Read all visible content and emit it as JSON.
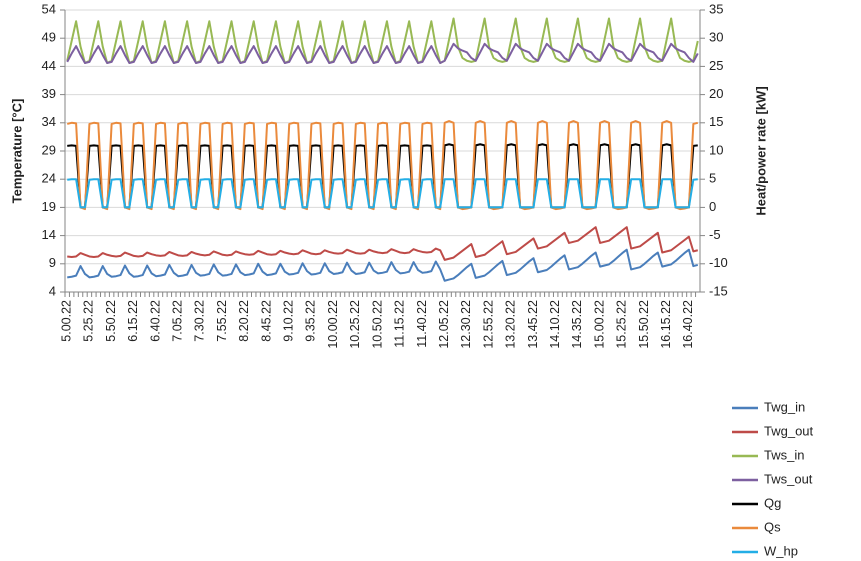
{
  "chart_data": {
    "type": "line",
    "ylabel": "Temperature [°C]",
    "y2label": "Heat/power rate [kW]",
    "ylim": [
      4,
      54
    ],
    "yticks": [
      4,
      9,
      14,
      19,
      24,
      29,
      34,
      39,
      44,
      49,
      54
    ],
    "y2lim": [
      -15,
      35
    ],
    "y2ticks": [
      -15,
      -10,
      -5,
      0,
      5,
      10,
      15,
      20,
      25,
      30,
      35
    ],
    "grid": true,
    "legend": "right",
    "categories": [
      "5.00.22",
      null,
      null,
      null,
      null,
      "5.25.22",
      null,
      null,
      null,
      null,
      "5.50.22",
      null,
      null,
      null,
      null,
      "6.15.22",
      null,
      null,
      null,
      null,
      "6.40.22",
      null,
      null,
      null,
      null,
      "7.05.22",
      null,
      null,
      null,
      null,
      "7.30.22",
      null,
      null,
      null,
      null,
      "7.55.22",
      null,
      null,
      null,
      null,
      "8.20.22",
      null,
      null,
      null,
      null,
      "8.45.22",
      null,
      null,
      null,
      null,
      "9.10.22",
      null,
      null,
      null,
      null,
      "9.35.22",
      null,
      null,
      null,
      null,
      "10.00.22",
      null,
      null,
      null,
      null,
      "10.25.22",
      null,
      null,
      null,
      null,
      "10.50.22",
      null,
      null,
      null,
      null,
      "11.15.22",
      null,
      null,
      null,
      null,
      "11.40.22",
      null,
      null,
      null,
      null,
      "12.05.22",
      null,
      null,
      null,
      null,
      "12.30.22",
      null,
      null,
      null,
      null,
      "12.55.22",
      null,
      null,
      null,
      null,
      "13.20.22",
      null,
      null,
      null,
      null,
      "13.45.22",
      null,
      null,
      null,
      null,
      "14.10.22",
      null,
      null,
      null,
      null,
      "14.35.22",
      null,
      null,
      null,
      null,
      "15.00.22",
      null,
      null,
      null,
      null,
      "15.25.22",
      null,
      null,
      null,
      null,
      "15.50.22",
      null,
      null,
      null,
      null,
      "16.15.22",
      null,
      null,
      null,
      null,
      "16.40.22",
      null,
      null
    ],
    "series": [
      {
        "name": "Twg_in",
        "color": "#4a7ebb",
        "values": [
          6.6,
          6.7,
          6.9,
          8.6,
          7.2,
          6.6,
          6.7,
          6.9,
          8.6,
          7.2,
          6.7,
          6.8,
          7,
          8.7,
          7.3,
          6.7,
          6.8,
          7,
          8.7,
          7.3,
          6.8,
          6.9,
          7.1,
          8.8,
          7.4,
          6.8,
          6.9,
          7.1,
          8.8,
          7.4,
          6.9,
          7,
          7.2,
          8.9,
          7.5,
          6.9,
          7,
          7.2,
          8.9,
          7.5,
          7,
          7.1,
          7.3,
          9,
          7.6,
          7,
          7.1,
          7.3,
          9,
          7.6,
          7.1,
          7.2,
          7.4,
          9.1,
          7.7,
          7.1,
          7.2,
          7.4,
          9.1,
          7.7,
          7.2,
          7.3,
          7.5,
          9.2,
          7.8,
          7.2,
          7.3,
          7.5,
          9.2,
          7.8,
          7.3,
          7.4,
          7.6,
          9.3,
          7.9,
          7.3,
          7.4,
          7.6,
          9.3,
          7.9,
          7.4,
          7.5,
          7.7,
          9.4,
          8,
          6,
          6.2,
          6.4,
          7,
          7.7,
          8.4,
          9,
          6.5,
          6.7,
          6.9,
          7.5,
          8.2,
          8.9,
          9.5,
          7,
          7.2,
          7.4,
          8,
          8.7,
          9.4,
          10,
          7.5,
          7.7,
          7.9,
          8.5,
          9.2,
          9.9,
          10.5,
          8,
          8.2,
          8.4,
          9,
          9.7,
          10.4,
          11,
          8.5,
          8.7,
          8.9,
          9.5,
          10.2,
          10.9,
          11.5,
          8,
          8.2,
          8.4,
          9,
          9.7,
          10.4,
          11,
          8.5,
          8.7,
          8.9,
          9.5,
          10.2,
          10.9,
          11.5,
          8.6,
          8.8
        ]
      },
      {
        "name": "Twg_out",
        "color": "#be4b48",
        "values": [
          10.3,
          10.2,
          10.3,
          10.9,
          10.6,
          10.3,
          10.2,
          10.3,
          10.9,
          10.6,
          10.4,
          10.3,
          10.4,
          11,
          10.7,
          10.4,
          10.3,
          10.4,
          11,
          10.7,
          10.5,
          10.4,
          10.5,
          11.1,
          10.8,
          10.5,
          10.4,
          10.5,
          11.1,
          10.8,
          10.6,
          10.5,
          10.6,
          11.2,
          10.9,
          10.6,
          10.5,
          10.6,
          11.2,
          10.9,
          10.7,
          10.6,
          10.7,
          11.3,
          11,
          10.7,
          10.6,
          10.7,
          11.3,
          11,
          10.8,
          10.7,
          10.8,
          11.4,
          11.1,
          10.8,
          10.7,
          10.8,
          11.4,
          11.1,
          10.9,
          10.8,
          10.9,
          11.5,
          11.2,
          10.9,
          10.8,
          10.9,
          11.5,
          11.2,
          11,
          10.9,
          11,
          11.6,
          11.3,
          11,
          10.9,
          11,
          11.6,
          11.3,
          11.1,
          11,
          11.1,
          11.7,
          11.4,
          9.7,
          9.9,
          10.1,
          10.7,
          11.3,
          11.9,
          12.5,
          10.2,
          10.4,
          10.6,
          11.2,
          11.8,
          12.4,
          13,
          10.7,
          10.9,
          11.1,
          11.7,
          12.3,
          12.9,
          13.5,
          11.7,
          11.9,
          12.1,
          12.7,
          13.3,
          13.9,
          14.5,
          12.7,
          12.9,
          13.1,
          13.7,
          14.3,
          14.9,
          15.5,
          12.7,
          12.9,
          13.1,
          13.7,
          14.3,
          14.9,
          15.5,
          11.7,
          11.9,
          12.1,
          12.7,
          13.3,
          13.9,
          14.5,
          11,
          11.2,
          11.4,
          12,
          12.6,
          13.2,
          13.8,
          11.2,
          11.4
        ]
      },
      {
        "name": "Tws_in",
        "color": "#98b954",
        "values": [
          45,
          48.5,
          52,
          47.5,
          44.6,
          45,
          48.5,
          52,
          47.5,
          44.6,
          45,
          48.5,
          52,
          47.5,
          44.6,
          45,
          48.5,
          52,
          47.5,
          44.6,
          45,
          48.5,
          52,
          47.5,
          44.6,
          45,
          48.5,
          52,
          47.5,
          44.6,
          45,
          48.5,
          52,
          47.5,
          44.6,
          45,
          48.5,
          52,
          47.5,
          44.6,
          45,
          48.5,
          52,
          47.5,
          44.6,
          45,
          48.5,
          52,
          47.5,
          44.6,
          45,
          48.5,
          52,
          47.5,
          44.6,
          45,
          48.5,
          52,
          47.5,
          44.6,
          45,
          48.5,
          52,
          47.5,
          44.6,
          45,
          48.5,
          52,
          47.5,
          44.6,
          45,
          48.5,
          52,
          47.5,
          44.6,
          45,
          48.5,
          52,
          47.5,
          44.6,
          45,
          48.5,
          52,
          47.5,
          44.6,
          45,
          48.8,
          52.5,
          47.5,
          45.5,
          45,
          44.8,
          45,
          48.8,
          52.5,
          47.5,
          45.5,
          45,
          44.8,
          45,
          48.8,
          52.5,
          47.5,
          45.5,
          45,
          44.8,
          45,
          48.8,
          52.5,
          47.5,
          45.5,
          45,
          44.8,
          45,
          48.8,
          52.5,
          47.5,
          45.5,
          45,
          44.8,
          45,
          48.8,
          52.5,
          47.5,
          45.5,
          45,
          44.8,
          45,
          48.8,
          52.5,
          47.5,
          45.5,
          45,
          44.8,
          45,
          48.8,
          52.5,
          47.5,
          45.5,
          45,
          44.8,
          45,
          48.5
        ]
      },
      {
        "name": "Tws_out",
        "color": "#7d60a0",
        "values": [
          44.8,
          46.3,
          47.6,
          46,
          44.6,
          44.8,
          46.3,
          47.6,
          46,
          44.6,
          44.8,
          46.3,
          47.6,
          46,
          44.6,
          44.8,
          46.3,
          47.6,
          46,
          44.6,
          44.8,
          46.3,
          47.6,
          46,
          44.6,
          44.8,
          46.3,
          47.6,
          46,
          44.6,
          44.8,
          46.3,
          47.6,
          46,
          44.6,
          44.8,
          46.3,
          47.6,
          46,
          44.6,
          44.8,
          46.3,
          47.6,
          46,
          44.6,
          44.8,
          46.3,
          47.6,
          46,
          44.6,
          44.8,
          46.3,
          47.6,
          46,
          44.6,
          44.8,
          46.3,
          47.6,
          46,
          44.6,
          44.8,
          46.3,
          47.6,
          46,
          44.6,
          44.8,
          46.3,
          47.6,
          46,
          44.6,
          44.8,
          46.3,
          47.6,
          46,
          44.6,
          44.8,
          46.3,
          47.6,
          46,
          44.6,
          44.8,
          46.3,
          47.6,
          46,
          44.6,
          45,
          46.5,
          48,
          47.2,
          46.8,
          46.5,
          45.5,
          45,
          46.5,
          48,
          47.2,
          46.8,
          46.5,
          45.5,
          45,
          46.5,
          48,
          47.2,
          46.8,
          46.5,
          45.5,
          45,
          46.5,
          48,
          47.2,
          46.8,
          46.5,
          45.5,
          45,
          46.5,
          48,
          47.2,
          46.8,
          46.5,
          45.5,
          45,
          46.5,
          48,
          47.2,
          46.8,
          46.5,
          45.5,
          45,
          46.5,
          48,
          47.2,
          46.8,
          46.5,
          45.5,
          45,
          46.5,
          48,
          47.2,
          46.8,
          46.5,
          45.5,
          44.8,
          46.3
        ]
      },
      {
        "name": "Qg",
        "color": "#000000",
        "axis": "y2",
        "values": [
          10.9,
          11,
          10.9,
          0,
          0,
          10.9,
          11,
          10.9,
          0,
          0,
          10.9,
          11,
          10.9,
          0,
          0,
          10.9,
          11,
          10.9,
          0,
          0,
          10.9,
          11,
          10.9,
          0,
          0,
          10.9,
          11,
          10.9,
          0,
          0,
          10.9,
          11,
          10.9,
          0,
          0,
          10.9,
          11,
          10.9,
          0,
          0,
          10.9,
          11,
          10.9,
          0,
          0,
          10.9,
          11,
          10.9,
          0,
          0,
          10.9,
          11,
          10.9,
          0,
          0,
          10.9,
          11,
          10.9,
          0,
          0,
          10.9,
          11,
          10.9,
          0,
          0,
          10.9,
          11,
          10.9,
          0,
          0,
          10.9,
          11,
          10.9,
          0,
          0,
          10.9,
          11,
          10.9,
          0,
          0,
          10.9,
          11,
          10.9,
          0,
          0,
          11,
          11.2,
          11,
          0,
          0,
          0,
          0,
          11,
          11.2,
          11,
          0,
          0,
          0,
          0,
          11,
          11.2,
          11,
          0,
          0,
          0,
          0,
          11,
          11.2,
          11,
          0,
          0,
          0,
          0,
          11,
          11.2,
          11,
          0,
          0,
          0,
          0,
          11,
          11.2,
          11,
          0,
          0,
          0,
          0,
          11,
          11.2,
          11,
          0,
          0,
          0,
          0,
          11,
          11.2,
          11,
          0,
          0,
          0,
          0,
          10.9,
          11
        ]
      },
      {
        "name": "Qs",
        "color": "#ea8a3c",
        "axis": "y2",
        "values": [
          14.8,
          15,
          14.9,
          0,
          -0.3,
          14.8,
          15,
          14.9,
          0,
          -0.3,
          14.8,
          15,
          14.9,
          0,
          -0.3,
          14.8,
          15,
          14.9,
          0,
          -0.3,
          14.8,
          15,
          14.9,
          0,
          -0.3,
          14.8,
          15,
          14.9,
          0,
          -0.3,
          14.8,
          15,
          14.9,
          0,
          -0.3,
          14.8,
          15,
          14.9,
          0,
          -0.3,
          14.8,
          15,
          14.9,
          0,
          -0.3,
          14.8,
          15,
          14.9,
          0,
          -0.3,
          14.8,
          15,
          14.9,
          0,
          -0.3,
          14.8,
          15,
          14.9,
          0,
          -0.3,
          14.8,
          15,
          14.9,
          0,
          -0.3,
          14.8,
          15,
          14.9,
          0,
          -0.3,
          14.8,
          15,
          14.9,
          0,
          -0.3,
          14.8,
          15,
          14.9,
          0,
          -0.3,
          14.8,
          15,
          14.9,
          0,
          -0.3,
          15,
          15.3,
          15,
          0,
          -0.3,
          -0.2,
          0,
          15,
          15.3,
          15,
          0,
          -0.3,
          -0.2,
          0,
          15,
          15.3,
          15,
          0,
          -0.3,
          -0.2,
          0,
          15,
          15.3,
          15,
          0,
          -0.3,
          -0.2,
          0,
          15,
          15.3,
          15,
          0,
          -0.3,
          -0.2,
          0,
          15,
          15.3,
          15,
          0,
          -0.3,
          -0.2,
          0,
          15,
          15.3,
          15,
          0,
          -0.3,
          -0.2,
          0,
          15,
          15.3,
          15,
          0,
          -0.3,
          -0.2,
          0,
          14.8,
          15
        ]
      },
      {
        "name": "W_hp",
        "color": "#23aee6",
        "axis": "y2",
        "values": [
          4.9,
          5,
          5,
          0,
          0,
          4.9,
          5,
          5,
          0,
          0,
          4.9,
          5,
          5,
          0,
          0,
          4.9,
          5,
          5,
          0,
          0,
          4.9,
          5,
          5,
          0,
          0,
          4.9,
          5,
          5,
          0,
          0,
          4.9,
          5,
          5,
          0,
          0,
          4.9,
          5,
          5,
          0,
          0,
          4.9,
          5,
          5,
          0,
          0,
          4.9,
          5,
          5,
          0,
          0,
          4.9,
          5,
          5,
          0,
          0,
          4.9,
          5,
          5,
          0,
          0,
          4.9,
          5,
          5,
          0,
          0,
          4.9,
          5,
          5,
          0,
          0,
          4.9,
          5,
          5,
          0,
          0,
          4.9,
          5,
          5,
          0,
          0,
          4.9,
          5,
          5,
          0,
          0,
          5,
          5,
          5,
          0,
          0,
          0,
          0,
          5,
          5,
          5,
          0,
          0,
          0,
          0,
          5,
          5,
          5,
          0,
          0,
          0,
          0,
          5,
          5,
          5,
          0,
          0,
          0,
          0,
          5,
          5,
          5,
          0,
          0,
          0,
          0,
          5,
          5,
          5,
          0,
          0,
          0,
          0,
          5,
          5,
          5,
          0,
          0,
          0,
          0,
          5,
          5,
          5,
          0,
          0,
          0,
          0,
          4.9,
          5
        ]
      }
    ]
  }
}
